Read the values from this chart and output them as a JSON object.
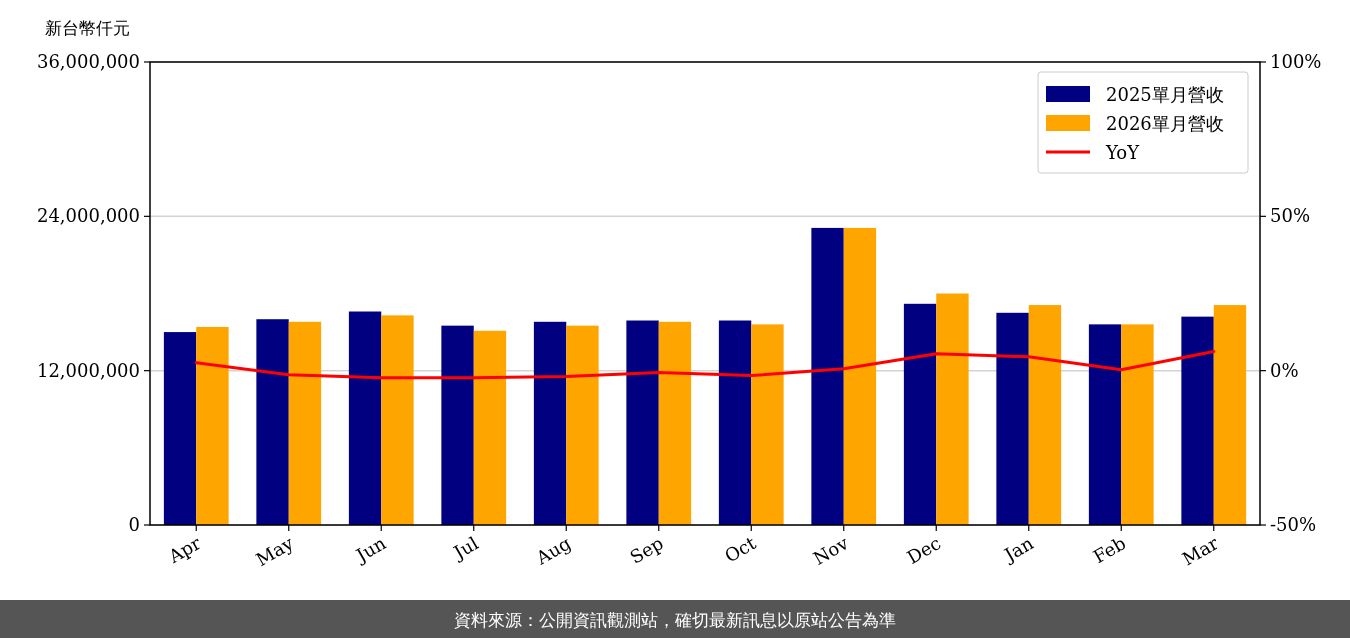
{
  "chart_data": {
    "type": "bar",
    "ylabel": "新台幣仟元",
    "annotations": [
      "資料來源：公開資訊觀測站，確切最新訊息以原站公告為準"
    ],
    "categories": [
      "Apr",
      "May",
      "Jun",
      "Jul",
      "Aug",
      "Sep",
      "Oct",
      "Nov",
      "Dec",
      "Jan",
      "Feb",
      "Mar"
    ],
    "series": [
      {
        "name": "2025單月營收",
        "color": "#000080",
        "values": [
          15000000,
          16000000,
          16600000,
          15500000,
          15800000,
          15900000,
          15900000,
          23100000,
          17200000,
          16500000,
          15600000,
          16200000
        ]
      },
      {
        "name": "2026單月營收",
        "color": "#ffa500",
        "values": [
          15400000,
          15800000,
          16300000,
          15100000,
          15500000,
          15800000,
          15600000,
          23100000,
          18000000,
          17100000,
          15600000,
          17100000
        ]
      },
      {
        "name": "YoY",
        "type": "line",
        "axis": "y2",
        "color": "#ff0000",
        "values": [
          2.6,
          -1.3,
          -2.3,
          -2.3,
          -1.9,
          -0.6,
          -1.6,
          0.6,
          5.5,
          4.5,
          0.3,
          6.2
        ]
      }
    ],
    "ylim": [
      0,
      36000000
    ],
    "yticks": [
      {
        "value": 0,
        "label": "0"
      },
      {
        "value": 12000000,
        "label": "12,000,000"
      },
      {
        "value": 24000000,
        "label": "24,000,000"
      },
      {
        "value": 36000000,
        "label": "36,000,000"
      }
    ],
    "y2lim": [
      -50,
      100
    ],
    "y2ticks": [
      {
        "value": -50,
        "label": "-50%"
      },
      {
        "value": 0,
        "label": "0%"
      },
      {
        "value": 50,
        "label": "50%"
      },
      {
        "value": 100,
        "label": "100%"
      }
    ],
    "grid": "y",
    "legend": "top right"
  }
}
